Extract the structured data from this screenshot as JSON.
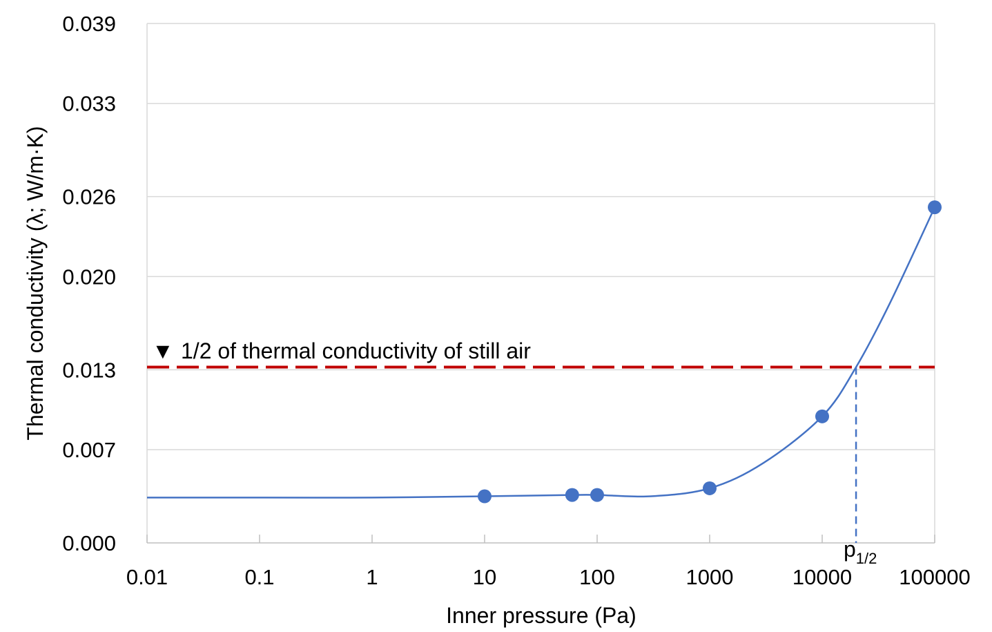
{
  "chart_data": {
    "type": "scatter",
    "xlabel": "Inner pressure (Pa)",
    "ylabel": "Thermal conductivity (λ; W/m·K)",
    "x_scale": "log",
    "xlim": [
      0.01,
      100000
    ],
    "ylim": [
      0.0,
      0.039
    ],
    "x_ticks": [
      "0.01",
      "0.1",
      "1",
      "10",
      "100",
      "1000",
      "10000",
      "100000"
    ],
    "y_ticks": [
      "0.000",
      "0.007",
      "0.013",
      "0.020",
      "0.026",
      "0.033",
      "0.039"
    ],
    "grid": "horizontal",
    "legend": "none",
    "points": [
      {
        "x": 10,
        "y": 0.0035
      },
      {
        "x": 60,
        "y": 0.0036
      },
      {
        "x": 100,
        "y": 0.0036
      },
      {
        "x": 1000,
        "y": 0.0041
      },
      {
        "x": 10000,
        "y": 0.0095
      },
      {
        "x": 100000,
        "y": 0.0252
      }
    ],
    "fit_curve": [
      {
        "x": 0.01,
        "y": 0.0034
      },
      {
        "x": 0.1,
        "y": 0.0034
      },
      {
        "x": 1,
        "y": 0.0034
      },
      {
        "x": 10,
        "y": 0.0035
      },
      {
        "x": 60,
        "y": 0.0036
      },
      {
        "x": 100,
        "y": 0.0036
      },
      {
        "x": 300,
        "y": 0.0035
      },
      {
        "x": 1000,
        "y": 0.0041
      },
      {
        "x": 3000,
        "y": 0.006
      },
      {
        "x": 10000,
        "y": 0.0095
      },
      {
        "x": 20000,
        "y": 0.0132
      },
      {
        "x": 40000,
        "y": 0.018
      },
      {
        "x": 100000,
        "y": 0.0252
      }
    ],
    "reference_line": {
      "y": 0.0132,
      "label": "1/2 of thermal conductivity of still air",
      "marker": "▼",
      "color": "#c00000"
    },
    "p_half": {
      "x": 20000,
      "label_main": "p",
      "label_sub": "1/2"
    },
    "colors": {
      "series": "#4472c4",
      "grid": "#d9d9d9",
      "reference": "#c00000"
    }
  }
}
